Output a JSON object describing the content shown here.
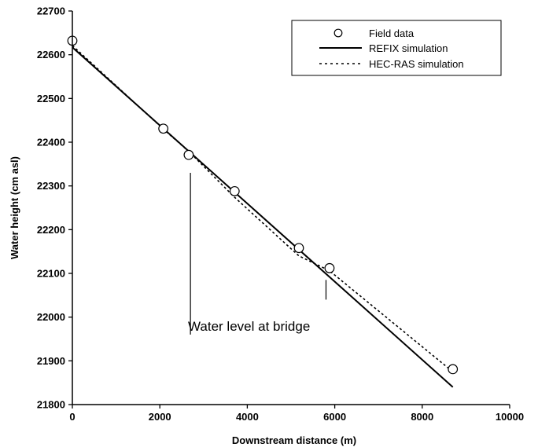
{
  "chart_data": {
    "type": "scatter",
    "xlabel": "Downstream distance (m)",
    "ylabel": "Water height (cm asl)",
    "xlim": [
      0,
      10000
    ],
    "ylim": [
      21800,
      22700
    ],
    "xticks": [
      0,
      2000,
      4000,
      6000,
      8000,
      10000
    ],
    "yticks": [
      21800,
      21900,
      22000,
      22100,
      22200,
      22300,
      22400,
      22500,
      22600,
      22700
    ],
    "xtick_labels": [
      "0",
      "2000",
      "4000",
      "6000",
      "8000",
      "10000"
    ],
    "ytick_labels": [
      "21800",
      "21900",
      "22000",
      "22100",
      "22200",
      "22300",
      "22400",
      "22500",
      "22600",
      "22700"
    ],
    "grid": false,
    "legend_position": "top-right",
    "series": [
      {
        "name": "Field data",
        "kind": "marker",
        "x": [
          0,
          2080,
          2660,
          3710,
          5180,
          5880,
          8700
        ],
        "y": [
          22632,
          22431,
          22371,
          22288,
          22158,
          22112,
          21881
        ]
      },
      {
        "name": "REFIX simulation",
        "kind": "solid-line",
        "x": [
          0,
          8700
        ],
        "y": [
          22617,
          21840
        ]
      },
      {
        "name": "HEC-RAS simulation",
        "kind": "dotted-line",
        "x": [
          0,
          2080,
          2660,
          3710,
          5180,
          5880,
          8700
        ],
        "y": [
          22621,
          22430,
          22379,
          22274,
          22140,
          22106,
          21875
        ]
      }
    ],
    "annotation": {
      "text": "Water level at bridge",
      "left_marker_x": 2700,
      "left_marker_y_range": [
        21960,
        22330
      ],
      "right_marker_x": 5800,
      "right_marker_y_range": [
        22040,
        22085
      ]
    }
  }
}
